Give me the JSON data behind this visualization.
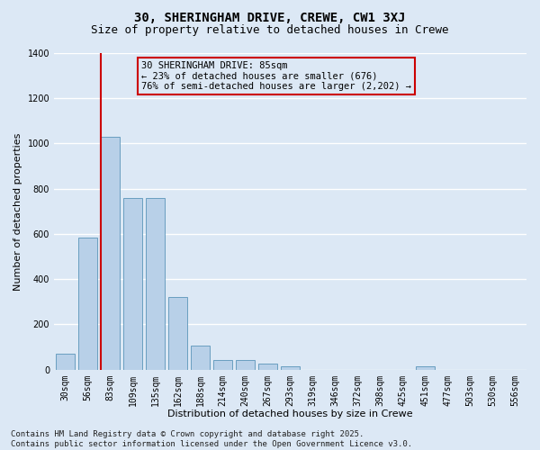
{
  "title_line1": "30, SHERINGHAM DRIVE, CREWE, CW1 3XJ",
  "title_line2": "Size of property relative to detached houses in Crewe",
  "xlabel": "Distribution of detached houses by size in Crewe",
  "ylabel": "Number of detached properties",
  "categories": [
    "30sqm",
    "56sqm",
    "83sqm",
    "109sqm",
    "135sqm",
    "162sqm",
    "188sqm",
    "214sqm",
    "240sqm",
    "267sqm",
    "293sqm",
    "319sqm",
    "346sqm",
    "372sqm",
    "398sqm",
    "425sqm",
    "451sqm",
    "477sqm",
    "503sqm",
    "530sqm",
    "556sqm"
  ],
  "values": [
    70,
    585,
    1030,
    760,
    760,
    320,
    105,
    42,
    42,
    25,
    14,
    0,
    0,
    0,
    0,
    0,
    14,
    0,
    0,
    0,
    0
  ],
  "bar_color": "#b8d0e8",
  "bar_edge_color": "#6a9fc0",
  "vline_index": 2,
  "vline_color": "#cc0000",
  "ylim": [
    0,
    1400
  ],
  "yticks": [
    0,
    200,
    400,
    600,
    800,
    1000,
    1200,
    1400
  ],
  "annotation_text": "30 SHERINGHAM DRIVE: 85sqm\n← 23% of detached houses are smaller (676)\n76% of semi-detached houses are larger (2,202) →",
  "annotation_box_color": "#cc0000",
  "background_color": "#dce8f5",
  "grid_color": "#ffffff",
  "footer_line1": "Contains HM Land Registry data © Crown copyright and database right 2025.",
  "footer_line2": "Contains public sector information licensed under the Open Government Licence v3.0.",
  "title_fontsize": 10,
  "subtitle_fontsize": 9,
  "tick_fontsize": 7,
  "ylabel_fontsize": 8,
  "xlabel_fontsize": 8,
  "footer_fontsize": 6.5,
  "annot_fontsize": 7.5
}
